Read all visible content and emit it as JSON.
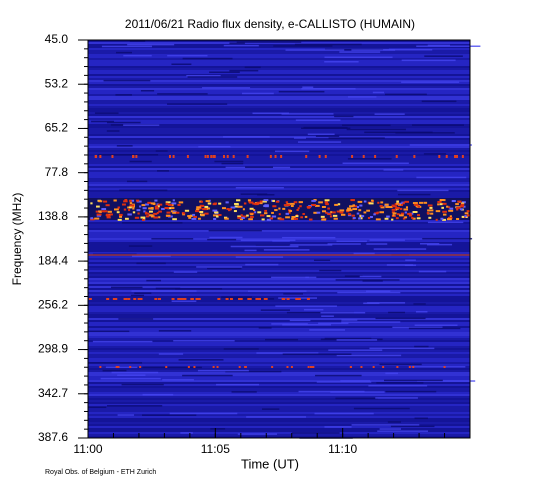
{
  "chart_data": {
    "type": "spectrogram",
    "title": "2011/06/21  Radio flux density, e-CALLISTO (HUMAIN)",
    "x_label": "Time (UT)",
    "y_label": "Frequency (MHz)",
    "footer": "Royal Obs. of Belgium - ETH Zurich",
    "xlim": [
      "11:00",
      "11:15"
    ],
    "xticks": [
      "11:00",
      "11:05",
      "11:10"
    ],
    "yticks": [
      {
        "value": 45,
        "label": "45.0"
      },
      {
        "value": 53.2,
        "label": "53.2"
      },
      {
        "value": 65.2,
        "label": "65.2"
      },
      {
        "value": 77.8,
        "label": "77.8"
      },
      {
        "value": 138.8,
        "label": "138.8"
      },
      {
        "value": 184.4,
        "label": "184.4"
      },
      {
        "value": 256.2,
        "label": "256.2"
      },
      {
        "value": 298.9,
        "label": "298.9"
      },
      {
        "value": 342.7,
        "label": "342.7"
      },
      {
        "value": 387.6,
        "label": "387.6"
      }
    ]
  }
}
